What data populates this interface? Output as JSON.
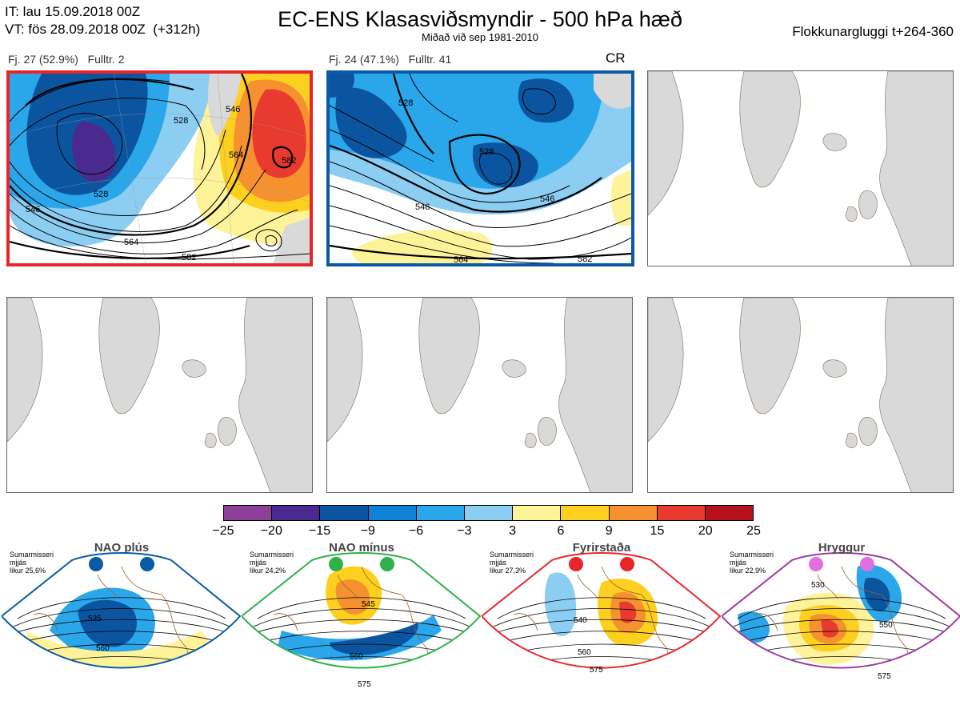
{
  "header": {
    "it_line": "IT: lau 15.09.2018 00Z",
    "vt_line": "VT: fös 28.09.2018 00Z  (+312h)",
    "title": "EC-ENS Klasasviðsmyndir - 500 hPa hæð",
    "subtitle": "Miðað við sep 1981-2010",
    "window": "Flokkunargluggi t+264-360"
  },
  "clusters": [
    {
      "label": "Fj. 27 (52.9%)   Fulltr. 2",
      "frame_color": "#e8262a",
      "members": 27,
      "percent": 52.9,
      "representative": 2,
      "regime_tag": "",
      "contour_labels": [
        "528",
        "546",
        "564",
        "582",
        "528",
        "546",
        "564",
        "582"
      ]
    },
    {
      "label": "Fj. 24 (47.1%)   Fulltr. 41",
      "frame_color": "#0a5aa5",
      "members": 24,
      "percent": 47.1,
      "representative": 41,
      "regime_tag": "CR",
      "contour_labels": [
        "528",
        "546",
        "564",
        "582",
        "528",
        "546"
      ]
    }
  ],
  "colorbar": {
    "ticks": [
      "−25",
      "−20",
      "−15",
      "−9",
      "−6",
      "−3",
      "3",
      "6",
      "9",
      "15",
      "20",
      "25"
    ],
    "colors": [
      "#8b3f98",
      "#4a2a8f",
      "#0b55a0",
      "#0e82d4",
      "#2aa6ea",
      "#8ccdf2",
      "#ffffff",
      "#fff39a",
      "#fdd020",
      "#f5922f",
      "#e83a2e",
      "#b5121b"
    ]
  },
  "regimes": [
    {
      "name": "NAO plús",
      "season": "Sumarmisseri",
      "smoothing": "mjjás",
      "probability": "líkur 25,6%",
      "color": "#0a5aa5",
      "contour_labels": [
        "535",
        "560"
      ]
    },
    {
      "name": "NAO mínus",
      "season": "Sumarmisseri",
      "smoothing": "mjjás",
      "probability": "líkur 24,2%",
      "color": "#2eb04a",
      "contour_labels": [
        "545",
        "560",
        "575"
      ]
    },
    {
      "name": "Fyrirstaða",
      "season": "Sumarmisseri",
      "smoothing": "mjjás",
      "probability": "líkur 27,3%",
      "color": "#e8262a",
      "contour_labels": [
        "540",
        "560",
        "575"
      ]
    },
    {
      "name": "Hryggur",
      "season": "Sumarmisseri",
      "smoothing": "mjjás",
      "probability": "líkur 22,9%",
      "color": "#e070e0",
      "contour_labels": [
        "530",
        "550",
        "575"
      ]
    }
  ]
}
